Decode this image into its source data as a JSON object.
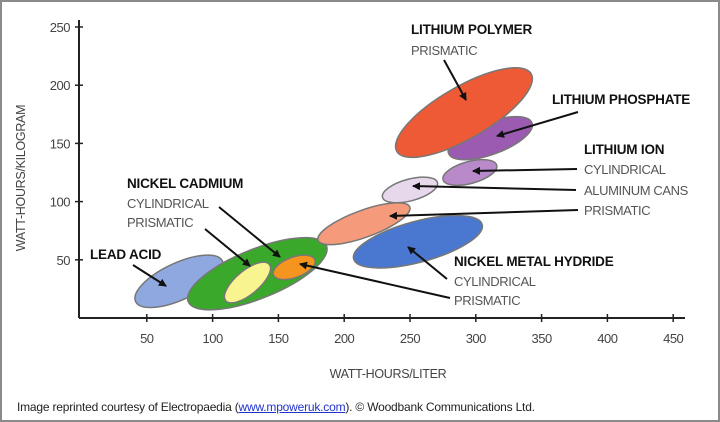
{
  "chart_data": {
    "type": "scatter",
    "subtype": "region-ellipses",
    "xlabel": "WATT-HOURS/LITER",
    "ylabel": "WATT-HOURS/KILOGRAM",
    "xlim": [
      0,
      460
    ],
    "ylim": [
      0,
      260
    ],
    "xticks": [
      "50",
      "100",
      "150",
      "200",
      "250",
      "300",
      "350",
      "400",
      "450"
    ],
    "yticks": [
      "50",
      "100",
      "150",
      "200",
      "250"
    ],
    "grid": false,
    "regions": [
      {
        "name": "Lead Acid",
        "x": [
          41,
          108
        ],
        "y": [
          9,
          54
        ],
        "color": "#8fa8e0"
      },
      {
        "name": "Nickel Cadmium",
        "x": [
          81,
          187
        ],
        "y": [
          7,
          69
        ],
        "color": "#3aa82a"
      },
      {
        "name": "Nickel Cadmium Cylindrical",
        "x": [
          109,
          144
        ],
        "y": [
          13,
          48
        ],
        "color": "#f8f590"
      },
      {
        "name": "Nickel Cadmium Prismatic",
        "x": [
          146,
          178
        ],
        "y": [
          33,
          54
        ],
        "color": "#f5941e"
      },
      {
        "name": "Lithium Ion Prismatic",
        "x": [
          180,
          250
        ],
        "y": [
          63,
          99
        ],
        "color": "#f59a7a"
      },
      {
        "name": "Nickel Metal Hydride",
        "x": [
          207,
          305
        ],
        "y": [
          43,
          88
        ],
        "color": "#4a78d0"
      },
      {
        "name": "Lithium Ion Aluminum Cans",
        "x": [
          229,
          271
        ],
        "y": [
          99,
          121
        ],
        "color": "#e8d8ec"
      },
      {
        "name": "Lithium Ion Cylindrical",
        "x": [
          275,
          316
        ],
        "y": [
          114,
          136
        ],
        "color": "#b98ac9"
      },
      {
        "name": "Lithium Phosphate",
        "x": [
          279,
          343
        ],
        "y": [
          136,
          173
        ],
        "color": "#9a5bb0"
      },
      {
        "name": "Lithium Polymer Prismatic",
        "x": [
          239,
          343
        ],
        "y": [
          138,
          215
        ],
        "color": "#ee5a35"
      }
    ]
  },
  "labels": {
    "lead_acid": "LEAD ACID",
    "nicd": "NICKEL CADMIUM",
    "nicd_cyl": "CYLINDRICAL",
    "nicd_pris": "PRISMATIC",
    "lipo": "LITHIUM POLYMER",
    "lipo_pris": "PRISMATIC",
    "lifepo": "LITHIUM PHOSPHATE",
    "liion": "LITHIUM ION",
    "liion_cyl": "CYLINDRICAL",
    "liion_al": "ALUMINUM CANS",
    "liion_pris": "PRISMATIC",
    "nimh": "NICKEL METAL HYDRIDE",
    "nimh_cyl": "CYLINDRICAL",
    "nimh_pris": "PRISMATIC"
  },
  "footnote": {
    "before": "Image reprinted courtesy of Electropaedia (",
    "link": "www.mpoweruk.com",
    "after": "). © Woodbank Communications Ltd."
  }
}
